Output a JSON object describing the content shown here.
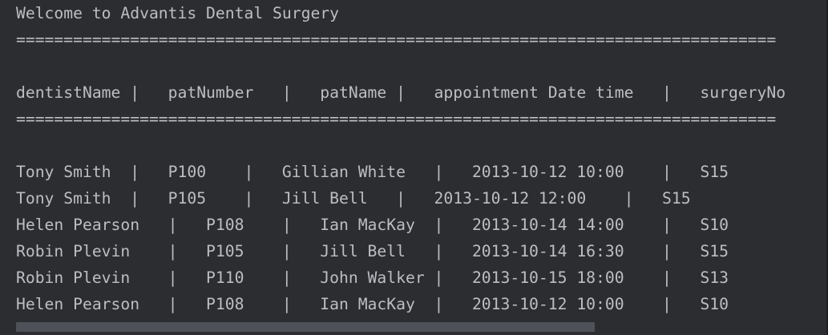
{
  "console": {
    "lines": [
      "Welcome to Advantis Dental Surgery",
      "================================================================================",
      "",
      "dentistName |   patNumber   |   patName |   appointment Date time   |   surgeryNo",
      "================================================================================",
      "",
      "Tony Smith  |   P100    |   Gillian White   |   2013-10-12 10:00    |   S15",
      "Tony Smith  |   P105    |   Jill Bell   |   2013-10-12 12:00    |   S15",
      "Helen Pearson   |   P108    |   Ian MacKay  |   2013-10-14 14:00    |   S10",
      "Robin Plevin    |   P105    |   Jill Bell   |   2013-10-14 16:30    |   S15",
      "Robin Plevin    |   P110    |   John Walker |   2013-10-15 18:00    |   S13",
      "Helen Pearson   |   P108    |   Ian MacKay  |   2013-10-12 10:00    |   S10"
    ]
  },
  "colors": {
    "background": "#2b2d30",
    "text": "#bcbec4",
    "scrollbar_thumb": "#4e5157"
  }
}
